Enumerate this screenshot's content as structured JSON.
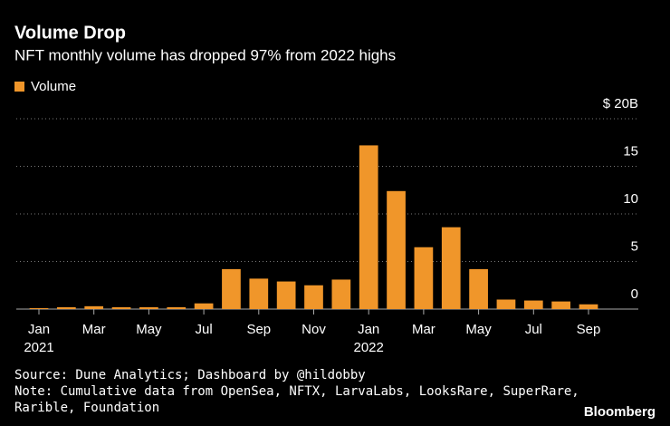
{
  "chart_data": {
    "type": "bar",
    "title": "Volume Drop",
    "subtitle": "NFT monthly volume has dropped 97% from 2022 highs",
    "categories": [
      "Jan",
      null,
      "Mar",
      null,
      "May",
      null,
      "Jul",
      null,
      "Sep",
      null,
      "Nov",
      null,
      "Jan",
      null,
      "Mar",
      null,
      "May",
      null,
      "Jul",
      null,
      "Sep"
    ],
    "category_years": [
      "2021",
      null,
      null,
      null,
      null,
      null,
      null,
      null,
      null,
      null,
      null,
      null,
      "2022",
      null,
      null,
      null,
      null,
      null,
      null,
      null,
      null
    ],
    "series": [
      {
        "name": "Volume",
        "color": "#f0962a",
        "values": [
          0.1,
          0.2,
          0.3,
          0.2,
          0.2,
          0.2,
          0.6,
          4.2,
          3.2,
          2.9,
          2.5,
          3.1,
          17.2,
          12.4,
          6.5,
          8.6,
          4.2,
          1.0,
          0.9,
          0.8,
          0.5
        ]
      }
    ],
    "ylim": [
      0,
      20
    ],
    "yticks": [
      0,
      5,
      10,
      15,
      {
        "value": 20,
        "label": "$ 20B"
      }
    ],
    "grid": true,
    "legend": "top-left",
    "source": "Source: Dune Analytics; Dashboard by @hildobby",
    "note": [
      "Note: Cumulative data from OpenSea, NFTX, LarvaLabs, LooksRare, SuperRare,",
      "Rarible, Foundation"
    ],
    "brand": "Bloomberg"
  }
}
